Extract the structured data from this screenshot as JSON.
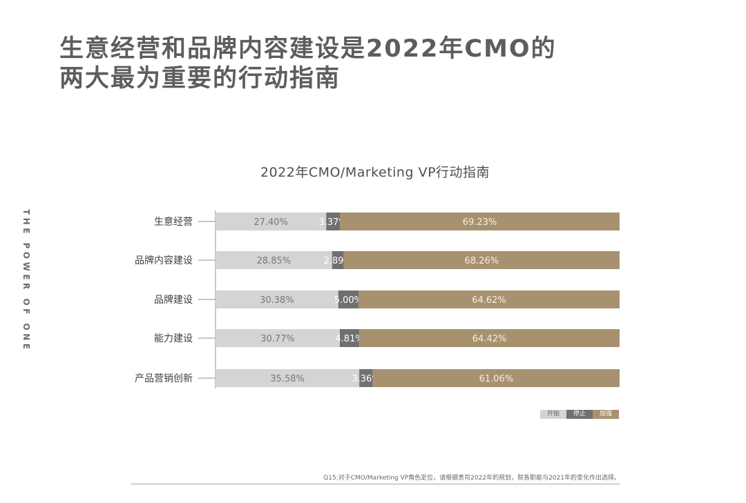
{
  "page": {
    "headline": [
      "生意经营和品牌内容建设是2022年CMO的",
      "两大最为重要的行动指南"
    ],
    "side_text": "THE POWER OF ONE",
    "footnote": "Q15:对于CMO/Marketing VP角色定位，请根据贵司2022年的规划，就各职能与2021年的变化作出选择。"
  },
  "chart_data": {
    "type": "bar",
    "orientation": "horizontal",
    "stacked": true,
    "percent": true,
    "title": "2022年CMO/Marketing VP行动指南",
    "categories": [
      "生意经营",
      "品牌内容建设",
      "品牌建设",
      "能力建设",
      "产品营销创新"
    ],
    "series": [
      {
        "name": "开始",
        "color": "#d4d4d4",
        "label_color": "#777777",
        "values": [
          27.4,
          28.85,
          30.38,
          30.77,
          35.58
        ]
      },
      {
        "name": "停止",
        "color": "#707070",
        "label_color": "#ffffff",
        "values": [
          3.37,
          2.89,
          5.0,
          4.81,
          3.36
        ]
      },
      {
        "name": "加强",
        "color": "#a8916f",
        "label_color": "#f5efe6",
        "values": [
          69.23,
          68.26,
          64.62,
          64.42,
          61.06
        ]
      }
    ],
    "xlim": [
      0,
      100
    ],
    "grid": false,
    "legend": "bottom-right"
  }
}
